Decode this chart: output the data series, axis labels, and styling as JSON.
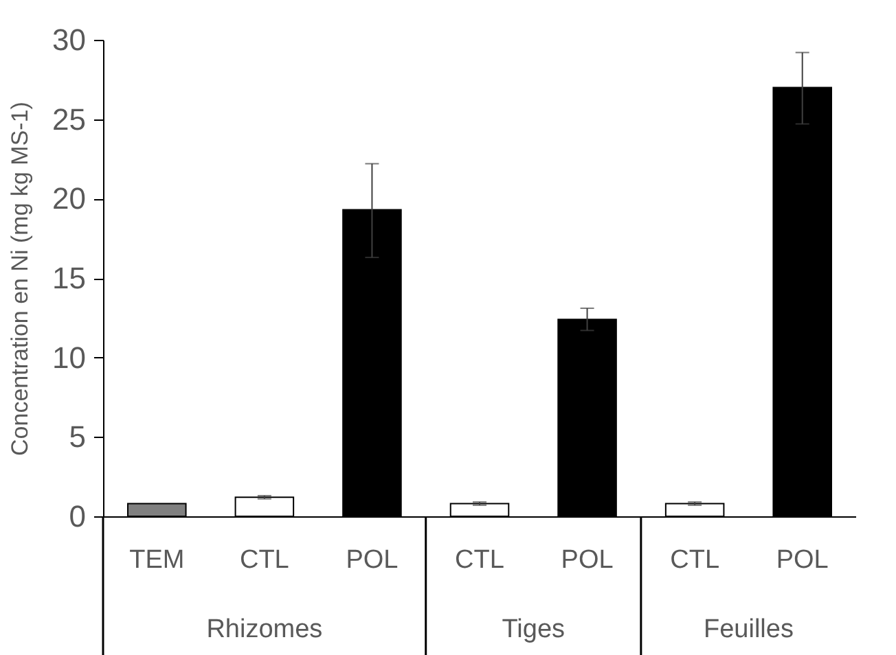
{
  "chart_data": {
    "type": "bar",
    "ylabel": "Concentration en Ni (mg kg MS-1)",
    "categories": [
      "TEM",
      "CTL",
      "POL",
      "CTL",
      "POL",
      "CTL",
      "POL"
    ],
    "values": [
      0.8,
      1.2,
      19.3,
      0.8,
      12.4,
      0.8,
      27.0
    ],
    "colors": [
      "#808080",
      "#ffffff",
      "#000000",
      "#ffffff",
      "#000000",
      "#ffffff",
      "#000000"
    ],
    "errors": [
      null,
      [
        1.1,
        1.3
      ],
      [
        16.3,
        22.2
      ],
      [
        0.7,
        0.9
      ],
      [
        11.7,
        13.1
      ],
      [
        0.7,
        0.9
      ],
      [
        24.7,
        29.2
      ]
    ],
    "annotations": [
      "Rhizomes",
      "Tiges",
      "Feuilles"
    ],
    "ylim": [
      0,
      30
    ],
    "yticks": [
      0,
      5,
      10,
      15,
      20,
      25,
      30
    ],
    "grid": false
  }
}
